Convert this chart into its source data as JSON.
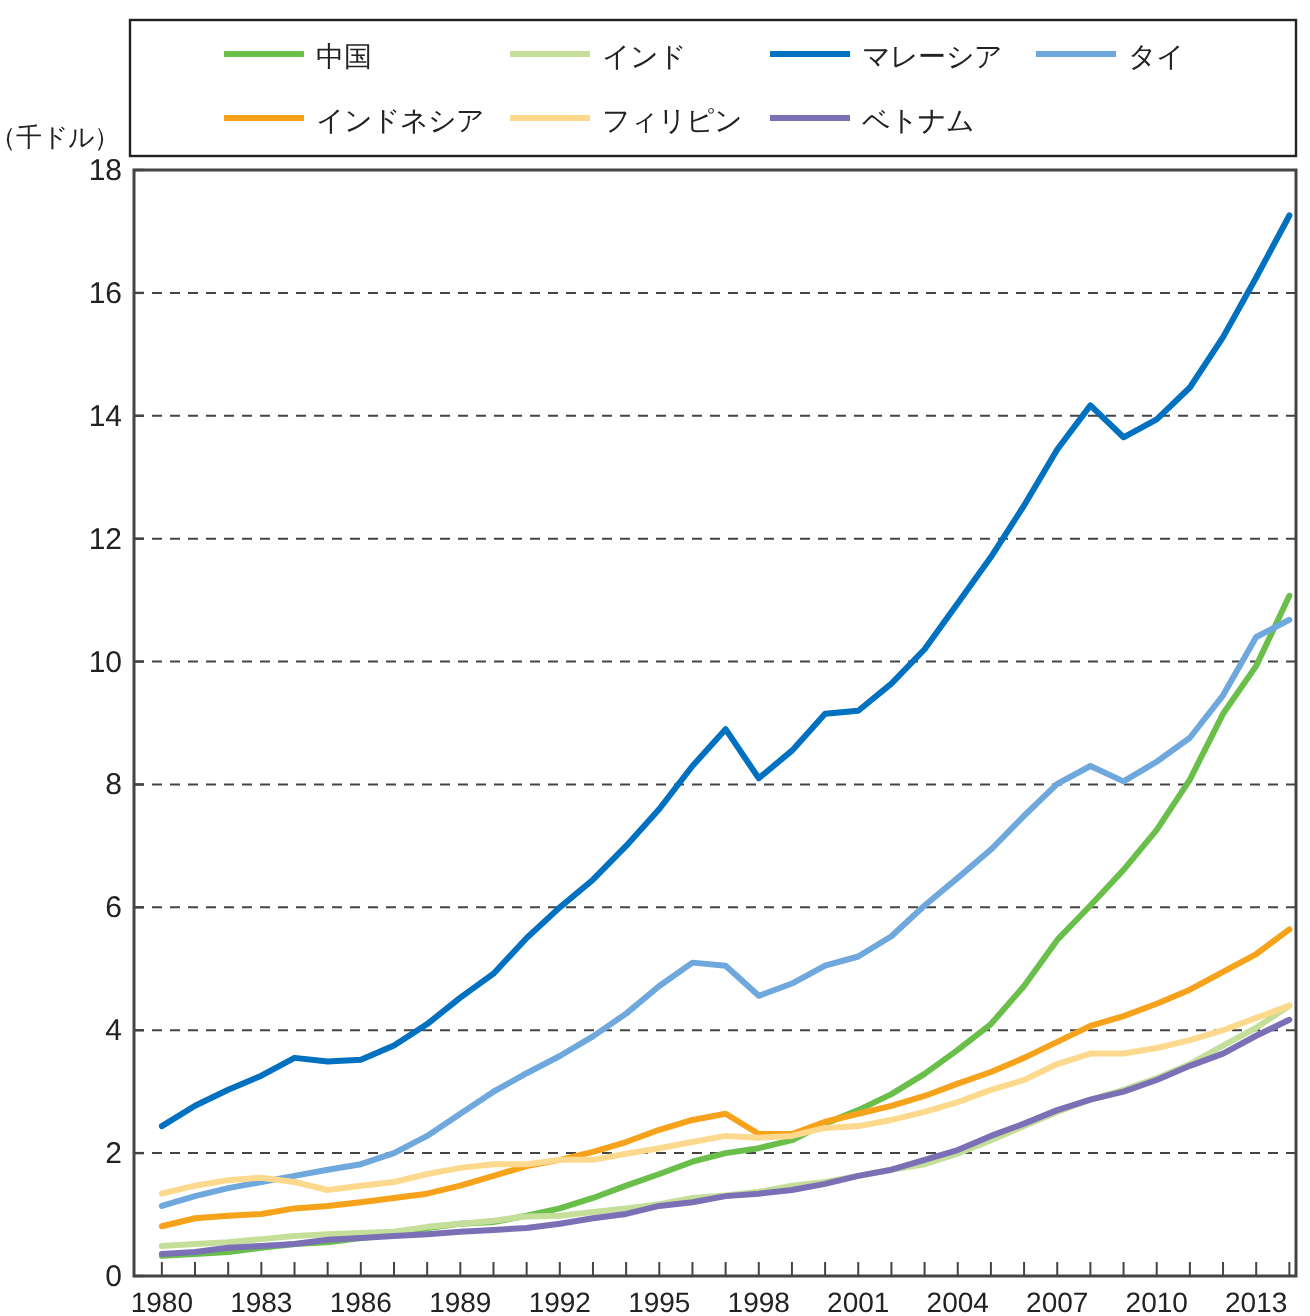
{
  "chart_data": {
    "type": "line",
    "ylabel": "（千ドル）",
    "x": [
      1980,
      1981,
      1982,
      1983,
      1984,
      1985,
      1986,
      1987,
      1988,
      1989,
      1990,
      1991,
      1992,
      1993,
      1994,
      1995,
      1996,
      1997,
      1998,
      1999,
      2000,
      2001,
      2002,
      2003,
      2004,
      2005,
      2006,
      2007,
      2008,
      2009,
      2010,
      2011,
      2012,
      2013,
      2014
    ],
    "series": [
      {
        "name": "中国",
        "color": "#6abf4b",
        "values": [
          0.33,
          0.36,
          0.39,
          0.46,
          0.52,
          0.55,
          0.62,
          0.68,
          0.78,
          0.85,
          0.88,
          0.98,
          1.1,
          1.27,
          1.47,
          1.66,
          1.86,
          2.0,
          2.08,
          2.21,
          2.48,
          2.7,
          2.96,
          3.29,
          3.68,
          4.1,
          4.72,
          5.47,
          6.03,
          6.61,
          7.26,
          8.08,
          9.15,
          9.93,
          11.07
        ]
      },
      {
        "name": "インド",
        "color": "#c5df9a",
        "values": [
          0.49,
          0.52,
          0.55,
          0.6,
          0.65,
          0.68,
          0.7,
          0.72,
          0.8,
          0.85,
          0.9,
          0.97,
          0.98,
          1.04,
          1.1,
          1.17,
          1.27,
          1.31,
          1.37,
          1.47,
          1.53,
          1.63,
          1.73,
          1.82,
          1.99,
          2.21,
          2.44,
          2.67,
          2.87,
          3.03,
          3.22,
          3.45,
          3.75,
          4.04,
          4.4
        ]
      },
      {
        "name": "マレーシア",
        "color": "#0070c0",
        "values": [
          2.44,
          2.77,
          3.03,
          3.26,
          3.55,
          3.49,
          3.52,
          3.75,
          4.1,
          4.53,
          4.92,
          5.5,
          6.0,
          6.45,
          7.0,
          7.6,
          8.3,
          8.9,
          8.1,
          8.55,
          9.15,
          9.2,
          9.64,
          10.2,
          10.95,
          11.7,
          12.54,
          13.45,
          14.17,
          13.65,
          13.94,
          14.46,
          15.28,
          16.25,
          17.26
        ]
      },
      {
        "name": "タイ",
        "color": "#6fa8dc",
        "values": [
          1.14,
          1.3,
          1.43,
          1.53,
          1.63,
          1.73,
          1.82,
          2.0,
          2.28,
          2.64,
          3.0,
          3.3,
          3.58,
          3.9,
          4.27,
          4.72,
          5.1,
          5.05,
          4.56,
          4.76,
          5.05,
          5.2,
          5.53,
          6.03,
          6.48,
          6.94,
          7.49,
          8.01,
          8.3,
          8.05,
          8.37,
          8.76,
          9.45,
          10.4,
          10.68
        ]
      },
      {
        "name": "インドネシア",
        "color": "#f7a21b",
        "values": [
          0.81,
          0.94,
          0.98,
          1.01,
          1.1,
          1.14,
          1.2,
          1.27,
          1.34,
          1.47,
          1.63,
          1.79,
          1.89,
          2.02,
          2.18,
          2.38,
          2.54,
          2.64,
          2.31,
          2.31,
          2.51,
          2.64,
          2.77,
          2.93,
          3.13,
          3.32,
          3.55,
          3.81,
          4.07,
          4.23,
          4.43,
          4.66,
          4.95,
          5.24,
          5.64
        ]
      },
      {
        "name": "フィリピン",
        "color": "#fdd98e",
        "values": [
          1.34,
          1.47,
          1.56,
          1.6,
          1.53,
          1.4,
          1.47,
          1.53,
          1.66,
          1.76,
          1.82,
          1.82,
          1.89,
          1.89,
          1.99,
          2.08,
          2.18,
          2.28,
          2.25,
          2.28,
          2.41,
          2.44,
          2.54,
          2.67,
          2.83,
          3.03,
          3.19,
          3.45,
          3.62,
          3.62,
          3.71,
          3.84,
          4.0,
          4.2,
          4.4
        ]
      },
      {
        "name": "ベトナム",
        "color": "#7b6fb5",
        "values": [
          0.36,
          0.39,
          0.46,
          0.49,
          0.52,
          0.59,
          0.62,
          0.65,
          0.68,
          0.72,
          0.75,
          0.78,
          0.85,
          0.94,
          1.01,
          1.14,
          1.2,
          1.3,
          1.34,
          1.4,
          1.5,
          1.63,
          1.73,
          1.89,
          2.05,
          2.28,
          2.48,
          2.7,
          2.87,
          3.0,
          3.19,
          3.42,
          3.62,
          3.91,
          4.17
        ]
      }
    ],
    "xlim": [
      1979.16,
      2014.2
    ],
    "xticks": [
      1980,
      {
        "value": 1981,
        "label": null
      },
      {
        "value": 1982,
        "label": null
      },
      1983,
      {
        "value": 1984,
        "label": null
      },
      {
        "value": 1985,
        "label": null
      },
      1986,
      {
        "value": 1987,
        "label": null
      },
      {
        "value": 1988,
        "label": null
      },
      1989,
      {
        "value": 1990,
        "label": null
      },
      {
        "value": 1991,
        "label": null
      },
      1992,
      {
        "value": 1993,
        "label": null
      },
      {
        "value": 1994,
        "label": null
      },
      1995,
      {
        "value": 1996,
        "label": null
      },
      {
        "value": 1997,
        "label": null
      },
      1998,
      {
        "value": 1999,
        "label": null
      },
      {
        "value": 2000,
        "label": null
      },
      2001,
      {
        "value": 2002,
        "label": null
      },
      {
        "value": 2003,
        "label": null
      },
      2004,
      {
        "value": 2005,
        "label": null
      },
      {
        "value": 2006,
        "label": null
      },
      2007,
      {
        "value": 2008,
        "label": null
      },
      {
        "value": 2009,
        "label": null
      },
      2010,
      {
        "value": 2011,
        "label": null
      },
      {
        "value": 2012,
        "label": null
      },
      2013,
      {
        "value": 2014,
        "label": null
      }
    ],
    "ylim": [
      0,
      18
    ],
    "yticks": [
      0,
      2,
      4,
      6,
      8,
      10,
      12,
      14,
      16,
      18
    ],
    "grid": "y",
    "legend": "top",
    "line_style": "solid",
    "marker": "none"
  }
}
